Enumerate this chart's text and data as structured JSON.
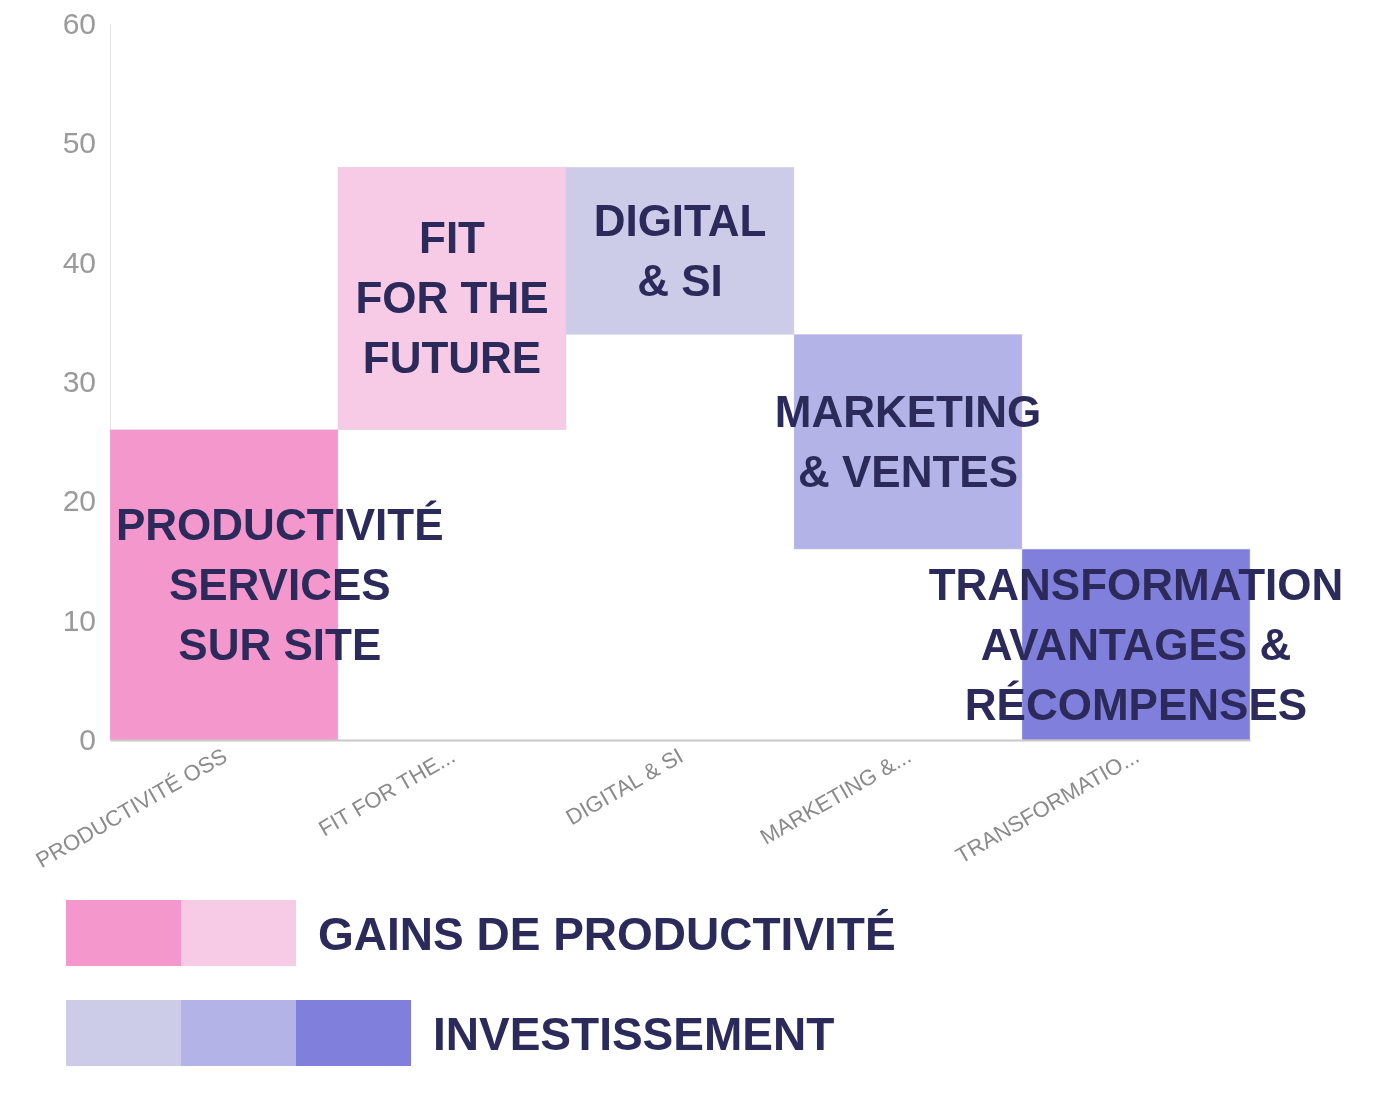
{
  "chart_data": {
    "type": "bar",
    "categories": [
      "PRODUCTIVITÉ OSS",
      "FIT FOR THE...",
      "DIGITAL & SI",
      "MARKETING &...",
      "TRANSFORMATIO..."
    ],
    "series": [
      {
        "name": "GAINS DE PRODUCTIVITÉ",
        "colors": [
          "#f497cd",
          "#f7cae6",
          null,
          null,
          null
        ],
        "values": [
          26,
          22,
          null,
          null,
          null
        ],
        "base": [
          0,
          26,
          null,
          null,
          null
        ]
      },
      {
        "name": "INVESTISSEMENT",
        "colors": [
          null,
          null,
          "#cccce8",
          "#b3b3e8",
          "#8080dc"
        ],
        "values": [
          null,
          null,
          14,
          18,
          16
        ],
        "base": [
          null,
          null,
          34,
          16,
          0
        ]
      }
    ],
    "ylim": [
      0,
      60
    ],
    "yticks": [
      0,
      10,
      20,
      30,
      40,
      50,
      60
    ],
    "grid": false,
    "legend": "bottom",
    "annotations": [
      "PRODUCTIVITÉ\nSERVICES\nSUR SITE",
      "FIT\nFOR THE\nFUTURE",
      "DIGITAL\n& SI",
      "MARKETING\n& VENTES",
      "TRANSFORMATION\nAVANTAGES &\nRÉCOMPENSES"
    ]
  }
}
